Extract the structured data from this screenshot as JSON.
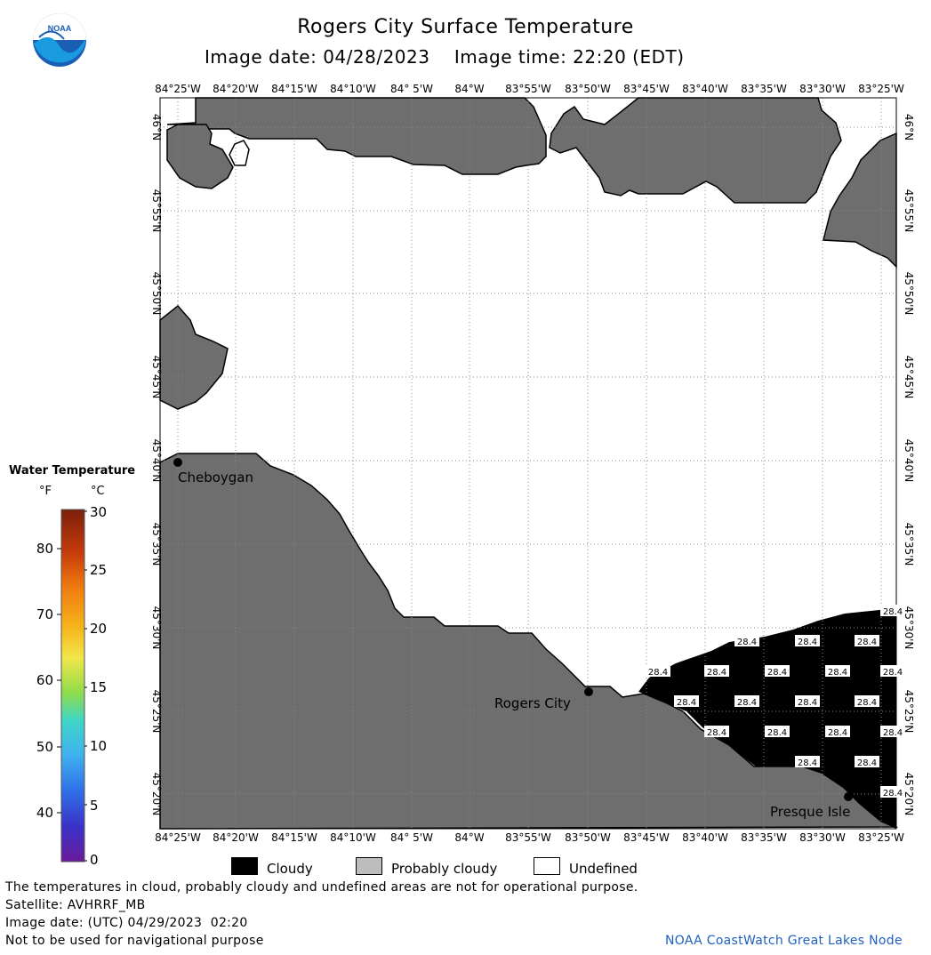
{
  "header": {
    "title": "Rogers City Surface Temperature",
    "subtitle": "Image date: 04/28/2023    Image time: 22:20 (EDT)",
    "logo_text": "NOAA"
  },
  "map": {
    "lon_labels": [
      "84°25'W",
      "84°20'W",
      "84°15'W",
      "84°10'W",
      "84° 5'W",
      "84°W",
      "83°55'W",
      "83°50'W",
      "83°45'W",
      "83°40'W",
      "83°35'W",
      "83°30'W",
      "83°25'W"
    ],
    "lat_labels": [
      "46°N",
      "45°55'N",
      "45°50'N",
      "45°45'N",
      "45°40'N",
      "45°35'N",
      "45°30'N",
      "45°25'N",
      "45°20'N"
    ],
    "cities": [
      "Cheboygan",
      "Rogers City",
      "Presque Isle"
    ],
    "cloud_temp_value": "28.4",
    "colors": {
      "land": "#6e6e6e",
      "cloud": "#000000",
      "undefined": "#ffffff",
      "grid": "#888888"
    }
  },
  "legend": {
    "title": "Water Temperature",
    "unit_f": "°F",
    "unit_c": "°C",
    "f_ticks": [
      "80",
      "70",
      "60",
      "50",
      "40"
    ],
    "c_ticks": [
      "30",
      "25",
      "20",
      "15",
      "10",
      "5",
      "0"
    ],
    "colormap": [
      "#7a1f0a",
      "#c43b0c",
      "#f07a10",
      "#f5b21a",
      "#f2e64a",
      "#b6e34a",
      "#5ccf4a",
      "#3fd6c8",
      "#3fb0ee",
      "#2f6fe6",
      "#3a32c8",
      "#6a1a9a"
    ]
  },
  "key": {
    "cloudy": "Cloudy",
    "probably_cloudy": "Probably cloudy",
    "undefined": "Undefined"
  },
  "footer": {
    "disclaimer": "The temperatures in cloud, probably cloudy and undefined areas are not for operational purpose.",
    "satellite": "Satellite: AVHRRF_MB",
    "utc_date": "Image date: (UTC) 04/29/2023  02:20",
    "nav_warning": "Not to be used for navigational purpose",
    "credit": "NOAA CoastWatch Great Lakes Node"
  }
}
